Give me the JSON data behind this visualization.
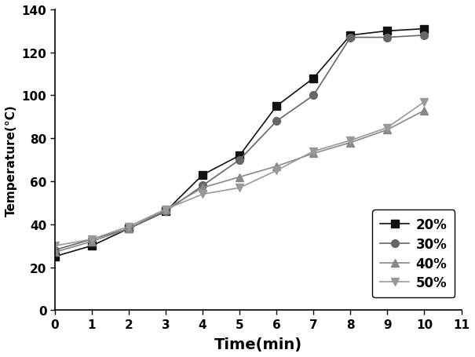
{
  "time": [
    0,
    1,
    2,
    3,
    4,
    5,
    6,
    7,
    8,
    9,
    10
  ],
  "series": {
    "20%": [
      25,
      30,
      38,
      46,
      63,
      72,
      95,
      108,
      128,
      130,
      131
    ],
    "30%": [
      28,
      33,
      38,
      46,
      58,
      70,
      88,
      100,
      127,
      127,
      128
    ],
    "40%": [
      27,
      32,
      38,
      47,
      57,
      62,
      67,
      73,
      78,
      84,
      93
    ],
    "50%": [
      30,
      33,
      39,
      47,
      54,
      57,
      65,
      74,
      79,
      85,
      97
    ]
  },
  "colors": {
    "20%": "#111111",
    "30%": "#666666",
    "40%": "#888888",
    "50%": "#999999"
  },
  "markers": {
    "20%": "s",
    "30%": "o",
    "40%": "^",
    "50%": "v"
  },
  "markersize": {
    "20%": 7,
    "30%": 7,
    "40%": 7,
    "50%": 7
  },
  "xlabel": "Time(min)",
  "ylabel": "Temperature(°C)",
  "xlim": [
    0,
    11
  ],
  "ylim": [
    0,
    140
  ],
  "xticks": [
    0,
    1,
    2,
    3,
    4,
    5,
    6,
    7,
    8,
    9,
    10,
    11
  ],
  "yticks": [
    0,
    20,
    40,
    60,
    80,
    100,
    120,
    140
  ],
  "legend_loc": "lower right",
  "background_color": "#ffffff"
}
